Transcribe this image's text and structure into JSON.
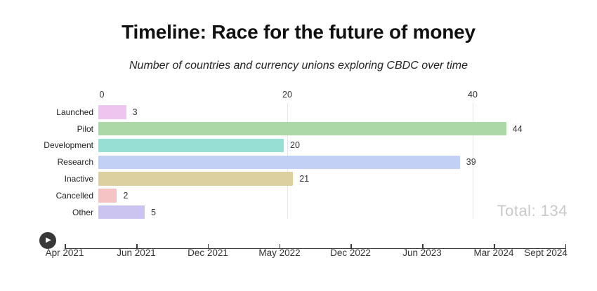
{
  "chart_data": {
    "type": "bar",
    "orientation": "horizontal",
    "title": "Timeline: Race for the future of money",
    "subtitle": "Number of countries and currency unions exploring CBDC over time",
    "categories": [
      "Launched",
      "Pilot",
      "Development",
      "Research",
      "Inactive",
      "Cancelled",
      "Other"
    ],
    "values": [
      3,
      44,
      20,
      39,
      21,
      2,
      5
    ],
    "colors": [
      "#eec5ee",
      "#abd8a6",
      "#97ded5",
      "#c2d0f5",
      "#dcd0a1",
      "#f5c3c4",
      "#ccc4f0"
    ],
    "axis_ticks": [
      "0",
      "20",
      "40"
    ],
    "xlim": [
      0,
      51
    ],
    "grid": true,
    "legend": "none",
    "total_label": "Total: 134"
  },
  "timeline": {
    "play_icon": "▶",
    "ticks": [
      "Apr 2021",
      "Jun 2021",
      "Dec 2021",
      "May 2022",
      "Dec 2022",
      "Jun 2023",
      "Mar 2024",
      "Sept 2024"
    ]
  }
}
